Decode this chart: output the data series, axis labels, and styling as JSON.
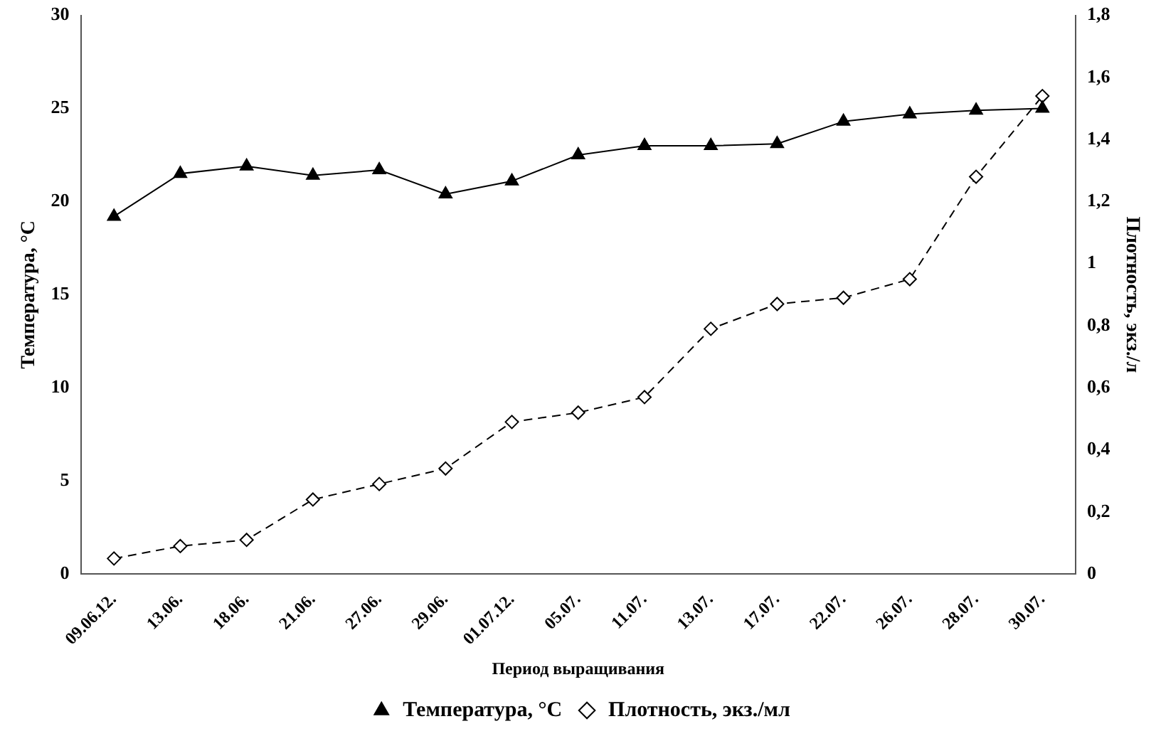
{
  "chart_data": {
    "type": "line",
    "xlabel": "Период выращивания",
    "ylabel": "Температура, °C",
    "y2label": "Плотность, экз./л",
    "categories": [
      "09.06.12.",
      "13.06.",
      "18.06.",
      "21.06.",
      "27.06.",
      "29.06.",
      "01.07.12.",
      "05.07.",
      "11.07.",
      "13.07.",
      "17.07.",
      "22.07.",
      "26.07.",
      "28.07.",
      "30.07."
    ],
    "series": [
      {
        "name": "Температура, °C",
        "color": "#000000",
        "marker": "triangle",
        "line_style": "solid",
        "values": [
          19.2,
          21.5,
          21.9,
          21.4,
          21.7,
          20.4,
          21.1,
          22.5,
          23.0,
          23.0,
          23.1,
          24.3,
          24.7,
          24.9,
          25.0
        ]
      },
      {
        "name": "Плотность, экз./мл",
        "color": "#000000",
        "marker": "diamond",
        "line_style": "dashed",
        "axis": "y2",
        "values": [
          0.05,
          0.09,
          0.11,
          0.24,
          0.29,
          0.34,
          0.49,
          0.52,
          0.57,
          0.79,
          0.87,
          0.89,
          0.95,
          1.28,
          1.54
        ]
      }
    ],
    "ylim": [
      0,
      30
    ],
    "yticks": [
      0,
      5,
      10,
      15,
      20,
      25,
      30
    ],
    "y2lim": [
      0,
      1.8
    ],
    "y2ticks": [
      0,
      {
        "value": 0.2,
        "label": "0,2"
      },
      {
        "value": 0.4,
        "label": "0,4"
      },
      {
        "value": 0.6,
        "label": "0,6"
      },
      {
        "value": 0.8,
        "label": "0,8"
      },
      1,
      {
        "value": 1.2,
        "label": "1,2"
      },
      {
        "value": 1.4,
        "label": "1,4"
      },
      {
        "value": 1.6,
        "label": "1,6"
      },
      {
        "value": 1.8,
        "label": "1,8"
      }
    ],
    "grid": false,
    "legend": "bottom"
  }
}
